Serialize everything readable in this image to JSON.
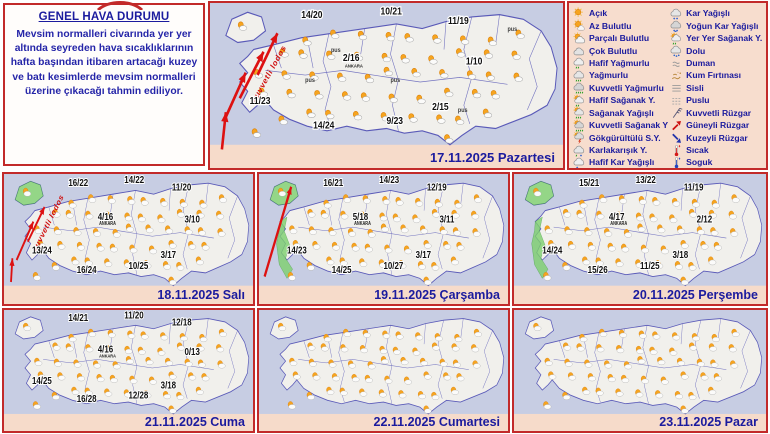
{
  "info_panel": {
    "title": "GENEL HAVA DURUMU",
    "body": "Mevsim normalleri civarında yer yer altında seyreden hava sıcaklıklarının hafta başından itibaren artacağı kuzey ve batı kesimlerde mevsim normalleri üzerine çıkacağı tahmin ediliyor."
  },
  "legend": {
    "columns": [
      {
        "items": [
          {
            "icon": "sun",
            "label": "Açık"
          },
          {
            "icon": "sun-small-cloud",
            "label": "Az Bulutlu"
          },
          {
            "icon": "sun-cloud",
            "label": "Parçalı Bulutlu"
          },
          {
            "icon": "cloud",
            "label": "Çok Bulutlu"
          },
          {
            "icon": "light-rain",
            "label": "Hafif Yağmurlu"
          },
          {
            "icon": "rain",
            "label": "Yağmurlu"
          },
          {
            "icon": "heavy-rain",
            "label": "Kuvvetli Yağmurlu"
          },
          {
            "icon": "light-shower",
            "label": "Hafif Sağanak Y."
          },
          {
            "icon": "shower",
            "label": "Sağanak Yağışlı"
          },
          {
            "icon": "heavy-shower",
            "label": "Kuvvetli Sağanak Y"
          },
          {
            "icon": "thunderstorm",
            "label": "Gökgürültülü S.Y."
          },
          {
            "icon": "sleet",
            "label": "Karlakarışık Y."
          },
          {
            "icon": "light-snow",
            "label": "Hafif Kar Yağışlı"
          }
        ]
      },
      {
        "items": [
          {
            "icon": "snow",
            "label": "Kar Yağışlı"
          },
          {
            "icon": "heavy-snow",
            "label": "Yoğun Kar Yağışlı"
          },
          {
            "icon": "local-shower",
            "label": "Yer Yer Sağanak Y."
          },
          {
            "icon": "hail",
            "label": "Dolu"
          },
          {
            "icon": "smoke",
            "label": "Duman"
          },
          {
            "icon": "sandstorm",
            "label": "Kum Fırtınası"
          },
          {
            "icon": "fog",
            "label": "Sisli"
          },
          {
            "icon": "haze",
            "label": "Puslu"
          },
          {
            "icon": "strong-wind",
            "label": "Kuvvetli Rüzgar"
          },
          {
            "icon": "south-wind",
            "label": "Güneyli Rüzgar"
          },
          {
            "icon": "north-wind",
            "label": "Kuzeyli Rüzgar"
          },
          {
            "icon": "hot",
            "label": "Sıcak"
          },
          {
            "icon": "cold",
            "label": "Soguk"
          }
        ]
      }
    ]
  },
  "maps": [
    {
      "date": "17.11.2025 Pazartesi",
      "city": "ANKARA",
      "temps": {
        "nw": "14/20",
        "n": "10/21",
        "ne": "11/19",
        "center": "2/16",
        "e": "1/10",
        "w": "11/23",
        "sw": "14/24",
        "s": "9/23",
        "se": "2/15"
      },
      "haze_labels": [
        "pus",
        "pus",
        "pus",
        "pus",
        "pus"
      ],
      "wind_label": "kuvvetli lodos",
      "wind_arrows": 4,
      "green_areas": []
    },
    {
      "date": "18.11.2025 Salı",
      "city": "ANKARA",
      "temps": {
        "nw": "16/22",
        "n": "14/22",
        "ne": "11/20",
        "center": "4/16",
        "e": "3/10",
        "w": "13/24",
        "sw": "16/24",
        "s": "10/25",
        "se": "3/17"
      },
      "wind_label": "kuvvetli lodos",
      "wind_arrows": 3,
      "green_areas": [
        "thrace"
      ]
    },
    {
      "date": "19.11.2025 Çarşamba",
      "city": "ANKARA",
      "temps": {
        "nw": "16/21",
        "n": "14/23",
        "ne": "12/19",
        "center": "5/18",
        "e": "3/11",
        "w": "14/23",
        "sw": "14/25",
        "s": "10/27",
        "se": "3/17"
      },
      "wind_arrows": 1,
      "green_areas": [
        "thrace",
        "west"
      ]
    },
    {
      "date": "20.11.2025 Perşembe",
      "city": "ANKARA",
      "temps": {
        "nw": "15/21",
        "n": "13/22",
        "ne": "11/19",
        "center": "4/17",
        "e": "2/12",
        "w": "14/24",
        "sw": "15/26",
        "s": "11/25",
        "se": "3/18"
      },
      "green_areas": [
        "thrace",
        "west"
      ]
    },
    {
      "date": "21.11.2025 Cuma",
      "city": "ANKARA",
      "temps": {
        "nw": "14/21",
        "n": "11/20",
        "ne": "12/18",
        "center": "4/16",
        "e": "0/13",
        "w": "14/25",
        "sw": "16/28",
        "s": "12/28",
        "se": "3/18"
      },
      "green_areas": []
    },
    {
      "date": "22.11.2025 Cumartesi",
      "temps": {},
      "green_areas": []
    },
    {
      "date": "23.11.2025 Pazar",
      "temps": {},
      "green_areas": []
    }
  ],
  "colors": {
    "panel_border": "#c22a2a",
    "panel_bg": "#f6dbca",
    "sea": "#c7cde3",
    "land": "#f1f0ec",
    "accent_text": "#1b1b9e",
    "rain_area": "#7ed06e",
    "wind_arrow": "#dd1111",
    "sun": "#f6a41f"
  }
}
